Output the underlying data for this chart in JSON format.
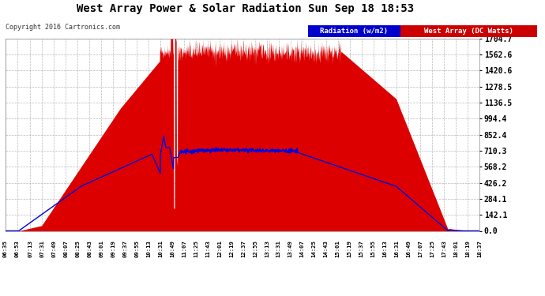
{
  "title": "West Array Power & Solar Radiation Sun Sep 18 18:53",
  "copyright": "Copyright 2016 Cartronics.com",
  "bg_color": "#ffffff",
  "plot_bg_color": "#ffffff",
  "ylabel_right": [
    "0.0",
    "142.1",
    "284.1",
    "426.2",
    "568.2",
    "710.3",
    "852.4",
    "994.4",
    "1136.5",
    "1278.5",
    "1420.6",
    "1562.6",
    "1704.7"
  ],
  "ymax": 1704.7,
  "ymin": 0.0,
  "legend_radiation_bg": "#0000cc",
  "legend_west_bg": "#cc0000",
  "fill_color": "#dd0000",
  "line_color": "#0000dd",
  "title_color": "#000000",
  "grid_color": "#aaaaaa",
  "tick_color": "#000000",
  "xticks": [
    "06:35",
    "06:53",
    "07:13",
    "07:31",
    "07:49",
    "08:07",
    "08:25",
    "08:43",
    "09:01",
    "09:19",
    "09:37",
    "09:55",
    "10:13",
    "10:31",
    "10:49",
    "11:07",
    "11:25",
    "11:43",
    "12:01",
    "12:19",
    "12:37",
    "12:55",
    "13:13",
    "13:31",
    "13:49",
    "14:07",
    "14:25",
    "14:43",
    "15:01",
    "15:19",
    "15:37",
    "15:55",
    "16:13",
    "16:31",
    "16:49",
    "17:07",
    "17:25",
    "17:43",
    "18:01",
    "18:19",
    "18:37"
  ]
}
